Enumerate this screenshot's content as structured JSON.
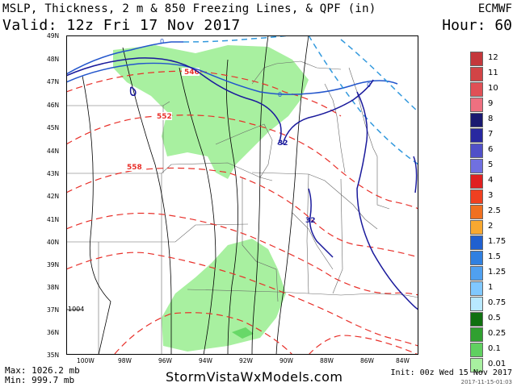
{
  "header": {
    "title": "MSLP, Thickness, 2 m & 850 Freezing Lines, & QPF (in)",
    "valid": "Valid: 12z Fri 17 Nov 2017",
    "model": "ECMWF",
    "hour": "Hour: 60"
  },
  "map": {
    "lat_labels": [
      "49N",
      "48N",
      "47N",
      "46N",
      "45N",
      "44N",
      "43N",
      "42N",
      "41N",
      "40N",
      "39N",
      "38N",
      "37N",
      "36N",
      "35N"
    ],
    "lon_labels": [
      "100W",
      "98W",
      "96W",
      "94W",
      "92W",
      "90W",
      "88W",
      "86W",
      "84W"
    ],
    "contour_labels": {
      "thickness": [
        "546",
        "552",
        "558"
      ],
      "freezing_850": [
        "32",
        "32"
      ],
      "freezing_2m": [
        "0",
        "0",
        "0"
      ],
      "pressure": [
        "1004"
      ]
    },
    "colors": {
      "thickness": "#e8302a",
      "freezing_850": "#1a1a9c",
      "freezing_2m_solid": "#2255cc",
      "freezing_2m_dashed": "#3399dd",
      "qpf_light": "#a8f0a0",
      "qpf_medium": "#68d868",
      "isobar": "#000000"
    }
  },
  "legend": {
    "items": [
      {
        "label": "12",
        "color": "#c4373b"
      },
      {
        "label": "11",
        "color": "#d24446"
      },
      {
        "label": "10",
        "color": "#e05056"
      },
      {
        "label": "9",
        "color": "#ee7080"
      },
      {
        "label": "8",
        "color": "#191970"
      },
      {
        "label": "7",
        "color": "#2828a0"
      },
      {
        "label": "6",
        "color": "#5050c8"
      },
      {
        "label": "5",
        "color": "#7070e0"
      },
      {
        "label": "4",
        "color": "#e02020"
      },
      {
        "label": "3",
        "color": "#f04020"
      },
      {
        "label": "2.5",
        "color": "#f07020"
      },
      {
        "label": "2",
        "color": "#f8a830"
      },
      {
        "label": "1.75",
        "color": "#2060d0"
      },
      {
        "label": "1.5",
        "color": "#3080e0"
      },
      {
        "label": "1.25",
        "color": "#50a0f0"
      },
      {
        "label": "1",
        "color": "#80c8ff"
      },
      {
        "label": "0.75",
        "color": "#b8e8ff"
      },
      {
        "label": "0.5",
        "color": "#107010"
      },
      {
        "label": "0.25",
        "color": "#30a030"
      },
      {
        "label": "0.1",
        "color": "#60d060"
      },
      {
        "label": "0.01",
        "color": "#a8f0a0"
      }
    ]
  },
  "footer": {
    "max": "Max: 1026.2 mb",
    "min": "Min: 999.7 mb",
    "site": "StormVistaWxModels.com",
    "init": "Init: 00z Wed 15 Nov 2017",
    "stamp": "2017-11-15-01:03"
  }
}
